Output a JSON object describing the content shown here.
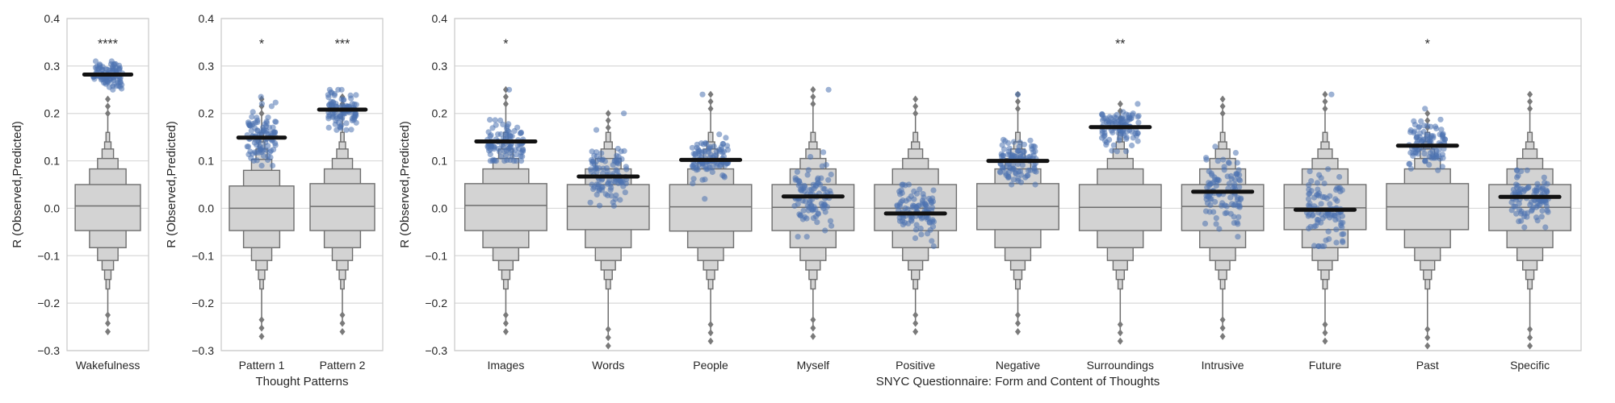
{
  "chart_data": [
    {
      "type": "boxen-strip",
      "ylabel": "R (Observed,Predicted)",
      "xlabel": "",
      "ylim": [
        -0.3,
        0.4
      ],
      "yticks": [
        "−0.3",
        "−0.2",
        "−0.1",
        "0.0",
        "0.1",
        "0.2",
        "0.3",
        "0.4"
      ],
      "grid": true,
      "categories": [
        "Wakefulness"
      ],
      "observed": [
        0.282
      ],
      "significance": [
        "****"
      ],
      "null": [
        {
          "median": 0.005,
          "levels": [
            [
              -0.047,
              0.05
            ],
            [
              -0.083,
              0.083
            ],
            [
              -0.11,
              0.105
            ],
            [
              -0.13,
              0.125
            ],
            [
              -0.15,
              0.14
            ],
            [
              -0.17,
              0.16
            ]
          ],
          "whisker": [
            -0.26,
            0.23
          ]
        }
      ],
      "points": [
        {
          "center": 0.282,
          "spread": 0.015,
          "min": 0.25,
          "max": 0.31
        }
      ]
    },
    {
      "type": "boxen-strip",
      "ylabel": "R (Observed,Predicted)",
      "xlabel": "Thought Patterns",
      "ylim": [
        -0.3,
        0.4
      ],
      "yticks": [
        "−0.3",
        "−0.2",
        "−0.1",
        "0.0",
        "0.1",
        "0.2",
        "0.3",
        "0.4"
      ],
      "grid": true,
      "categories": [
        "Pattern 1",
        "Pattern 2"
      ],
      "observed": [
        0.149,
        0.208
      ],
      "significance": [
        "*",
        "***"
      ],
      "null": [
        {
          "median": 0.0,
          "levels": [
            [
              -0.047,
              0.047
            ],
            [
              -0.083,
              0.08
            ],
            [
              -0.11,
              0.103
            ],
            [
              -0.13,
              0.125
            ],
            [
              -0.15,
              0.14
            ],
            [
              -0.17,
              0.16
            ]
          ],
          "whisker": [
            -0.27,
            0.23
          ]
        },
        {
          "median": 0.004,
          "levels": [
            [
              -0.047,
              0.052
            ],
            [
              -0.083,
              0.083
            ],
            [
              -0.11,
              0.105
            ],
            [
              -0.13,
              0.125
            ],
            [
              -0.15,
              0.14
            ],
            [
              -0.17,
              0.16
            ]
          ],
          "whisker": [
            -0.26,
            0.235
          ]
        }
      ],
      "points": [
        {
          "center": 0.149,
          "spread": 0.028,
          "min": 0.09,
          "max": 0.235
        },
        {
          "center": 0.208,
          "spread": 0.018,
          "min": 0.165,
          "max": 0.25
        }
      ]
    },
    {
      "type": "boxen-strip",
      "ylabel": "R (Observed,Predicted)",
      "xlabel": "SNYC Questionnaire: Form and Content of Thoughts",
      "ylim": [
        -0.3,
        0.4
      ],
      "yticks": [
        "−0.3",
        "−0.2",
        "−0.1",
        "0.0",
        "0.1",
        "0.2",
        "0.3",
        "0.4"
      ],
      "grid": true,
      "categories": [
        "Images",
        "Words",
        "People",
        "Myself",
        "Positive",
        "Negative",
        "Surroundings",
        "Intrusive",
        "Future",
        "Past",
        "Specific"
      ],
      "observed": [
        0.141,
        0.067,
        0.102,
        0.025,
        -0.011,
        0.1,
        0.171,
        0.035,
        -0.003,
        0.132,
        0.024
      ],
      "significance": [
        "*",
        "",
        "",
        "",
        "",
        "",
        "**",
        "",
        "",
        "*",
        ""
      ],
      "null": [
        {
          "median": 0.006,
          "levels": [
            [
              -0.047,
              0.052
            ],
            [
              -0.083,
              0.083
            ],
            [
              -0.11,
              0.105
            ],
            [
              -0.13,
              0.125
            ],
            [
              -0.15,
              0.14
            ],
            [
              -0.17,
              0.16
            ]
          ],
          "whisker": [
            -0.26,
            0.25
          ]
        },
        {
          "median": 0.004,
          "levels": [
            [
              -0.045,
              0.05
            ],
            [
              -0.083,
              0.083
            ],
            [
              -0.11,
              0.105
            ],
            [
              -0.13,
              0.125
            ],
            [
              -0.15,
              0.14
            ],
            [
              -0.17,
              0.16
            ]
          ],
          "whisker": [
            -0.29,
            0.2
          ]
        },
        {
          "median": 0.003,
          "levels": [
            [
              -0.048,
              0.05
            ],
            [
              -0.083,
              0.083
            ],
            [
              -0.11,
              0.105
            ],
            [
              -0.13,
              0.125
            ],
            [
              -0.15,
              0.14
            ],
            [
              -0.17,
              0.16
            ]
          ],
          "whisker": [
            -0.28,
            0.24
          ]
        },
        {
          "median": 0.002,
          "levels": [
            [
              -0.047,
              0.05
            ],
            [
              -0.083,
              0.083
            ],
            [
              -0.11,
              0.105
            ],
            [
              -0.13,
              0.125
            ],
            [
              -0.15,
              0.14
            ],
            [
              -0.17,
              0.16
            ]
          ],
          "whisker": [
            -0.27,
            0.25
          ]
        },
        {
          "median": 0.0,
          "levels": [
            [
              -0.047,
              0.05
            ],
            [
              -0.083,
              0.083
            ],
            [
              -0.11,
              0.105
            ],
            [
              -0.13,
              0.125
            ],
            [
              -0.15,
              0.14
            ],
            [
              -0.17,
              0.16
            ]
          ],
          "whisker": [
            -0.26,
            0.23
          ]
        },
        {
          "median": 0.004,
          "levels": [
            [
              -0.045,
              0.052
            ],
            [
              -0.083,
              0.083
            ],
            [
              -0.11,
              0.105
            ],
            [
              -0.13,
              0.125
            ],
            [
              -0.15,
              0.14
            ],
            [
              -0.17,
              0.16
            ]
          ],
          "whisker": [
            -0.26,
            0.24
          ]
        },
        {
          "median": 0.002,
          "levels": [
            [
              -0.047,
              0.05
            ],
            [
              -0.083,
              0.083
            ],
            [
              -0.11,
              0.105
            ],
            [
              -0.13,
              0.125
            ],
            [
              -0.15,
              0.14
            ],
            [
              -0.17,
              0.16
            ]
          ],
          "whisker": [
            -0.28,
            0.22
          ]
        },
        {
          "median": 0.004,
          "levels": [
            [
              -0.047,
              0.05
            ],
            [
              -0.083,
              0.083
            ],
            [
              -0.11,
              0.105
            ],
            [
              -0.13,
              0.125
            ],
            [
              -0.15,
              0.14
            ],
            [
              -0.17,
              0.16
            ]
          ],
          "whisker": [
            -0.27,
            0.23
          ]
        },
        {
          "median": 0.001,
          "levels": [
            [
              -0.045,
              0.05
            ],
            [
              -0.083,
              0.083
            ],
            [
              -0.11,
              0.105
            ],
            [
              -0.13,
              0.125
            ],
            [
              -0.15,
              0.14
            ],
            [
              -0.17,
              0.16
            ]
          ],
          "whisker": [
            -0.28,
            0.24
          ]
        },
        {
          "median": 0.003,
          "levels": [
            [
              -0.045,
              0.052
            ],
            [
              -0.083,
              0.083
            ],
            [
              -0.11,
              0.105
            ],
            [
              -0.13,
              0.125
            ],
            [
              -0.15,
              0.14
            ],
            [
              -0.17,
              0.16
            ]
          ],
          "whisker": [
            -0.29,
            0.2
          ]
        },
        {
          "median": 0.002,
          "levels": [
            [
              -0.047,
              0.05
            ],
            [
              -0.083,
              0.083
            ],
            [
              -0.11,
              0.105
            ],
            [
              -0.13,
              0.125
            ],
            [
              -0.15,
              0.14
            ],
            [
              -0.17,
              0.16
            ]
          ],
          "whisker": [
            -0.29,
            0.24
          ]
        }
      ],
      "points": [
        {
          "center": 0.141,
          "spread": 0.022,
          "min": 0.1,
          "max": 0.25
        },
        {
          "center": 0.067,
          "spread": 0.03,
          "min": 0.005,
          "max": 0.2
        },
        {
          "center": 0.102,
          "spread": 0.022,
          "min": 0.02,
          "max": 0.24
        },
        {
          "center": 0.025,
          "spread": 0.035,
          "min": -0.06,
          "max": 0.25
        },
        {
          "center": -0.011,
          "spread": 0.025,
          "min": -0.08,
          "max": 0.05
        },
        {
          "center": 0.1,
          "spread": 0.025,
          "min": 0.05,
          "max": 0.24
        },
        {
          "center": 0.171,
          "spread": 0.02,
          "min": 0.12,
          "max": 0.22
        },
        {
          "center": 0.035,
          "spread": 0.035,
          "min": -0.06,
          "max": 0.13
        },
        {
          "center": -0.003,
          "spread": 0.04,
          "min": -0.08,
          "max": 0.24
        },
        {
          "center": 0.132,
          "spread": 0.025,
          "min": 0.08,
          "max": 0.21
        },
        {
          "center": 0.024,
          "spread": 0.025,
          "min": -0.04,
          "max": 0.08
        }
      ]
    }
  ],
  "colors": {
    "box_fill": "#d3d3d3",
    "box_edge": "#6e6e6e",
    "outlier": "#7a7a7a",
    "point": "#4c72b0",
    "observed_line": "#111111",
    "grid": "#d9d9d9",
    "frame": "#cccccc"
  }
}
